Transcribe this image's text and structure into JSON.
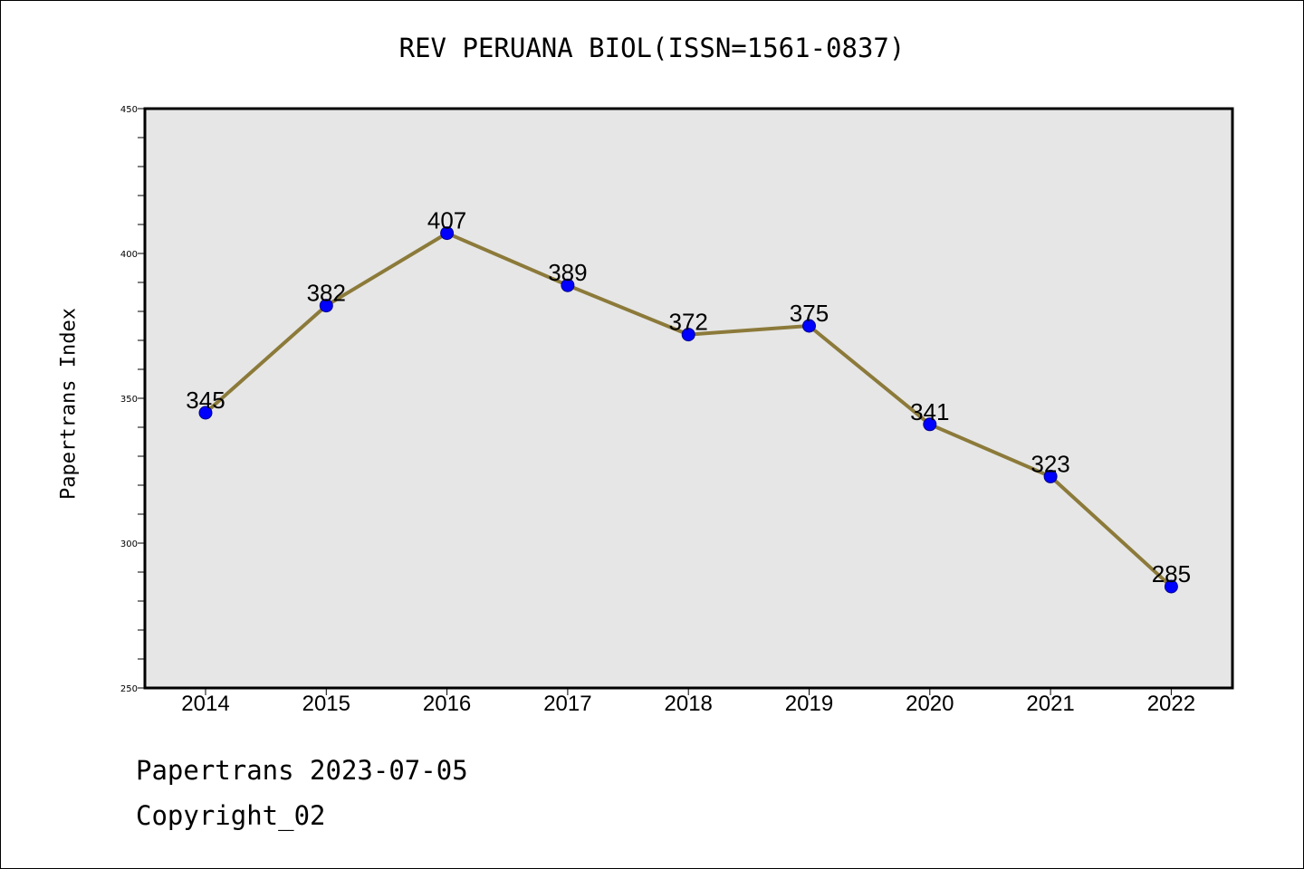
{
  "chart_data": {
    "type": "line",
    "title": "REV PERUANA BIOL(ISSN=1561-0837)",
    "ylabel": "Papertrans Index",
    "xlabel": "",
    "categories": [
      "2014",
      "2015",
      "2016",
      "2017",
      "2018",
      "2019",
      "2020",
      "2021",
      "2022"
    ],
    "values": [
      345,
      382,
      407,
      389,
      372,
      375,
      341,
      323,
      285
    ],
    "ylim": [
      250,
      450
    ],
    "yticks": [
      250,
      300,
      350,
      400,
      450
    ],
    "grid": false,
    "colors": {
      "line": "#8c7a3a",
      "marker": "#0000ff",
      "plot_background": "#e6e6e6"
    }
  },
  "footer": {
    "line1": "Papertrans 2023-07-05",
    "line2": "Copyright_02"
  }
}
